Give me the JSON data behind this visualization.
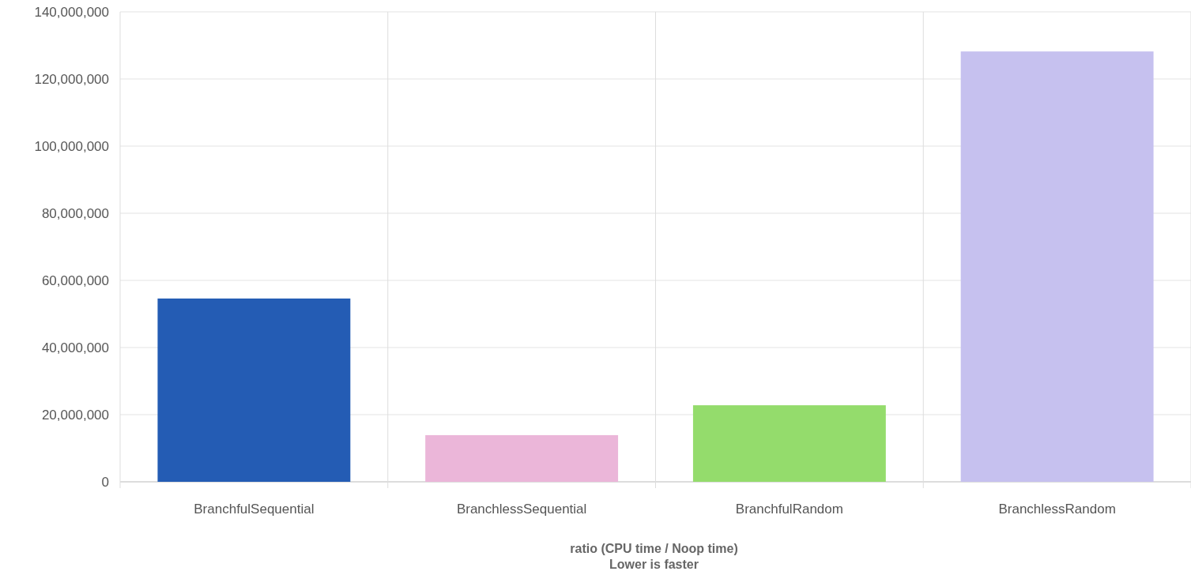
{
  "chart_data": {
    "type": "bar",
    "xlabel": "ratio (CPU time / Noop time)",
    "annotations": [
      "Lower is faster"
    ],
    "categories": [
      "BranchfulSequential",
      "BranchlessSequential",
      "BranchfulRandom",
      "BranchlessRandom"
    ],
    "values": [
      54600000,
      13900000,
      22800000,
      128200000
    ],
    "colors": [
      "#245cb4",
      "#ebb6d9",
      "#94dc6c",
      "#c6c1ef"
    ],
    "ylim": [
      0,
      140000000
    ],
    "yticks": [
      {
        "value": 0,
        "label": "0"
      },
      {
        "value": 20000000,
        "label": "20,000,000"
      },
      {
        "value": 40000000,
        "label": "40,000,000"
      },
      {
        "value": 60000000,
        "label": "60,000,000"
      },
      {
        "value": 80000000,
        "label": "80,000,000"
      },
      {
        "value": 100000000,
        "label": "100,000,000"
      },
      {
        "value": 120000000,
        "label": "120,000,000"
      },
      {
        "value": 140000000,
        "label": "140,000,000"
      }
    ],
    "grid": true
  }
}
